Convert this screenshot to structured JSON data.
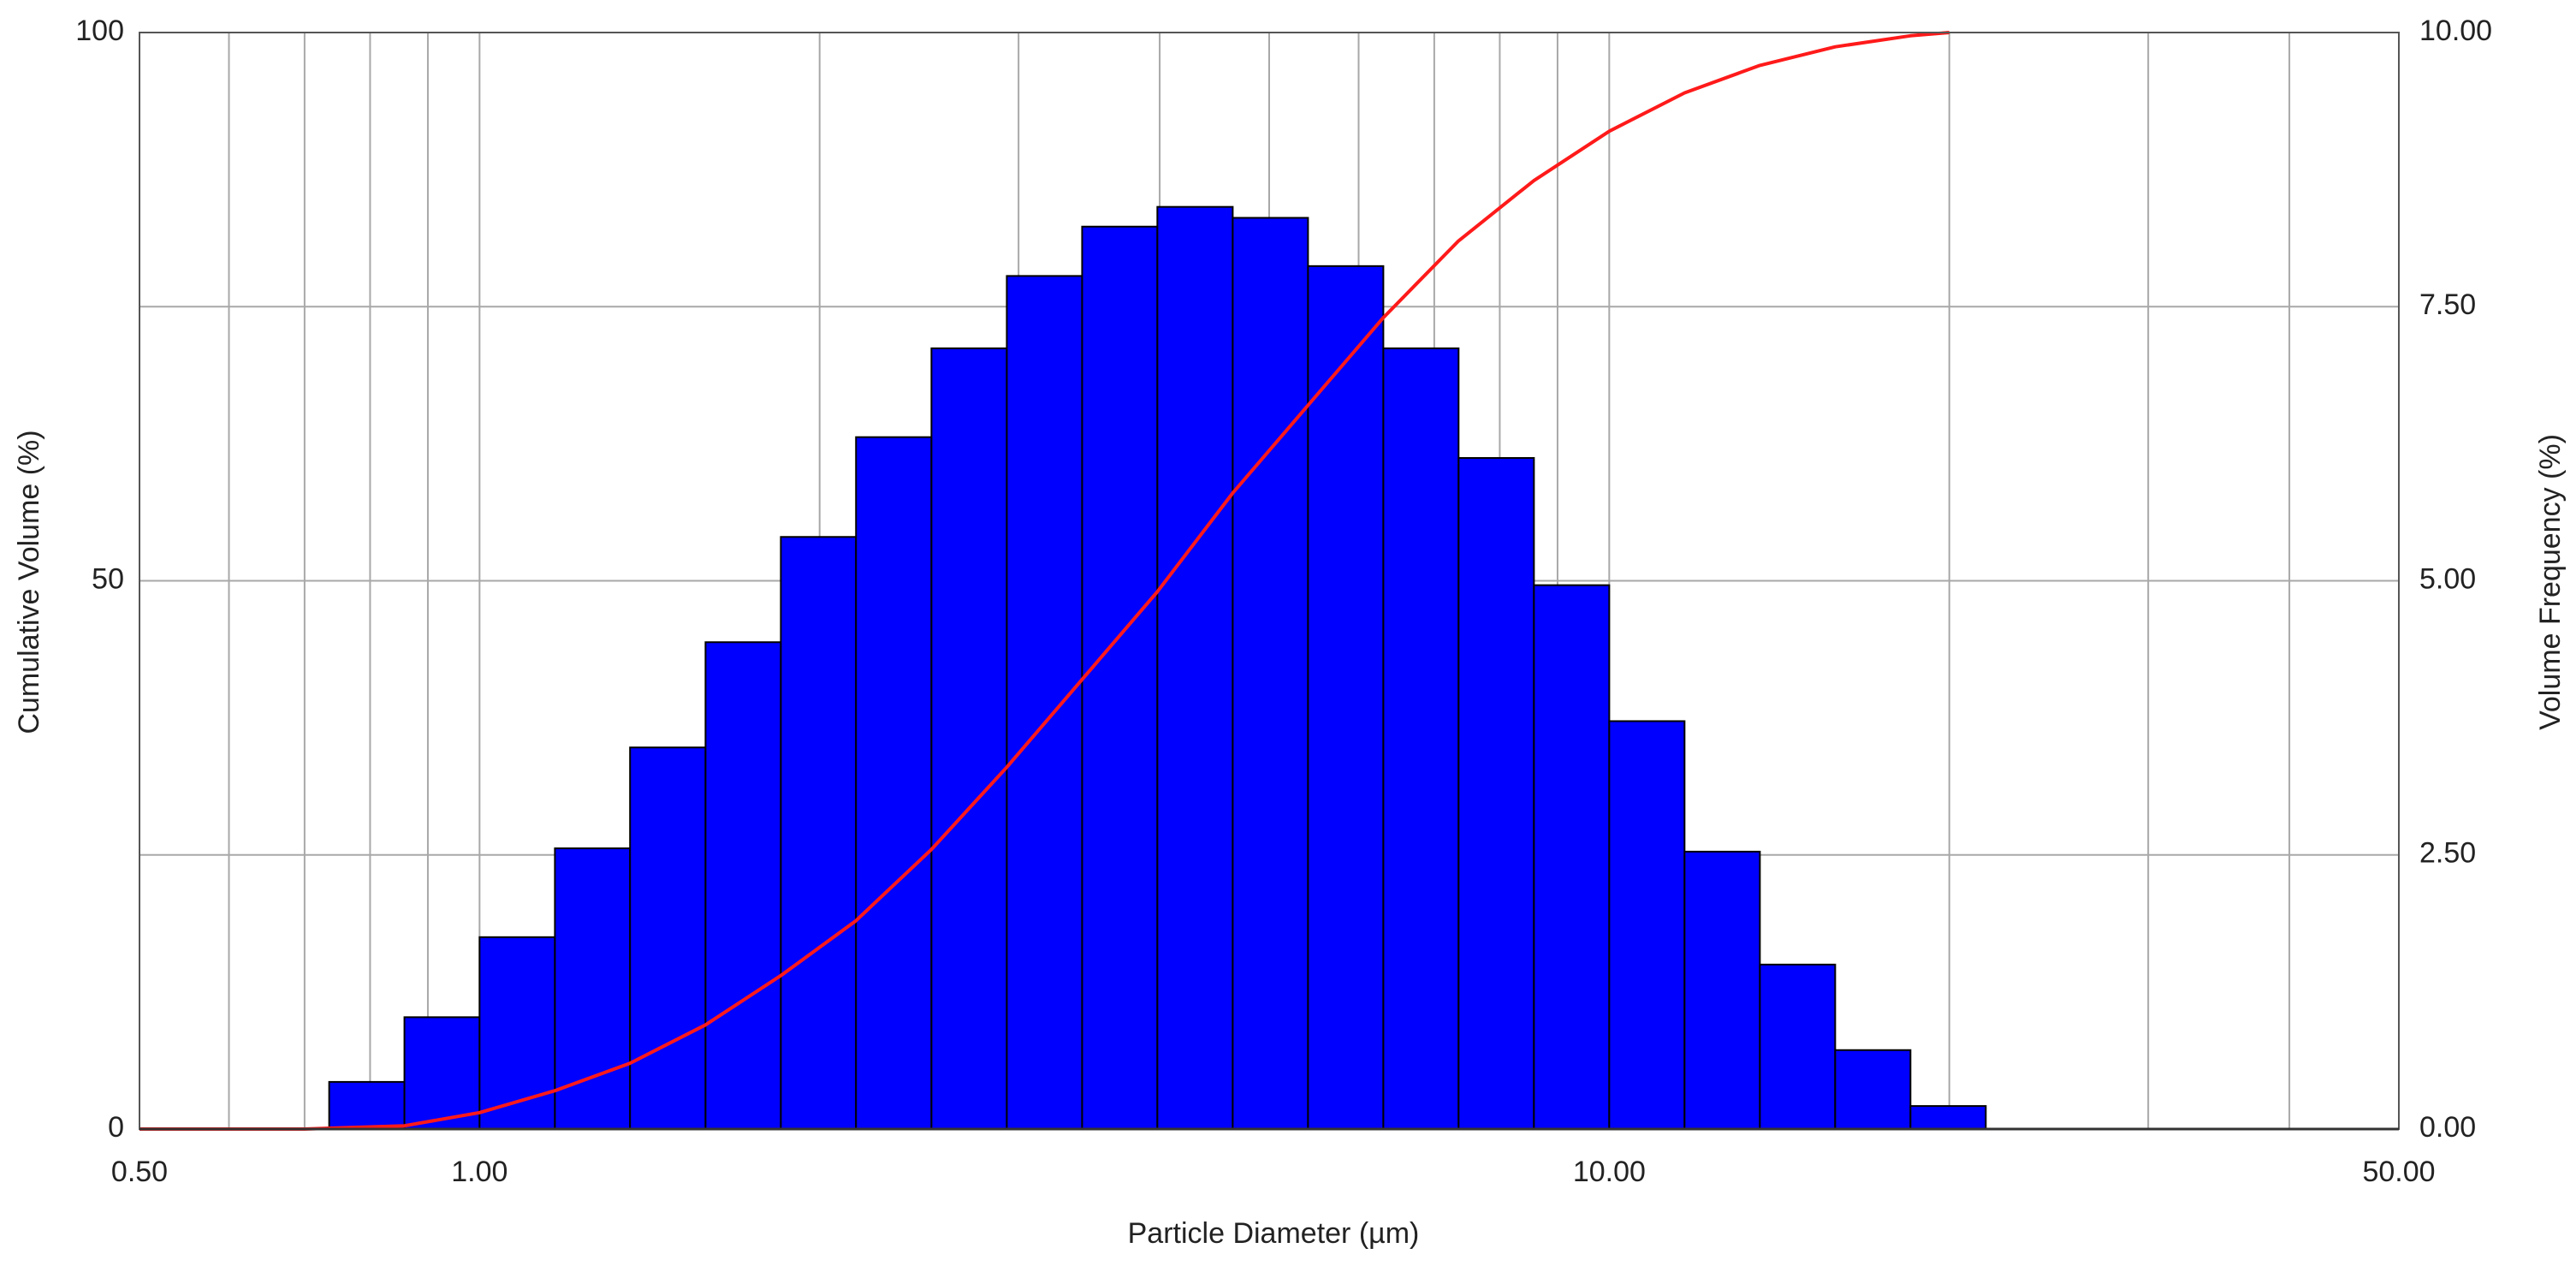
{
  "chart_data": {
    "type": "histogram",
    "x_label": "Particle Diameter (µm)",
    "y_label": "Cumulative Volume (%)",
    "y2_label": "Volume Frequency (%)",
    "x_scale": "log",
    "xlim": [
      0.5,
      50
    ],
    "xticks": [
      {
        "value": 0.5,
        "label": "0.50"
      },
      {
        "value": 1,
        "label": "1.00"
      },
      {
        "value": 10,
        "label": "10.00"
      },
      {
        "value": 50,
        "label": "50.00"
      }
    ],
    "x_minor_grid": [
      0.6,
      0.7,
      0.8,
      0.9,
      2,
      3,
      4,
      5,
      6,
      7,
      8,
      9,
      20,
      30,
      40
    ],
    "ylim": [
      0,
      100
    ],
    "yticks": [
      0,
      50,
      100
    ],
    "y2lim": [
      0,
      10
    ],
    "y2ticks": [
      {
        "value": 0,
        "label": "0.00"
      },
      {
        "value": 2.5,
        "label": "2.50"
      },
      {
        "value": 5,
        "label": "5.00"
      },
      {
        "value": 7.5,
        "label": "7.50"
      },
      {
        "value": 10,
        "label": "10.00"
      }
    ],
    "grid": true,
    "bins": [
      0.736,
      0.858,
      1.0,
      1.166,
      1.359,
      1.585,
      1.848,
      2.154,
      2.512,
      2.929,
      3.415,
      3.981,
      4.642,
      5.412,
      6.31,
      7.356,
      8.577,
      10.0,
      11.659,
      13.594,
      15.849,
      18.478,
      21.544
    ],
    "values": [
      0.43,
      1.02,
      1.75,
      2.56,
      3.48,
      4.44,
      5.4,
      6.31,
      7.12,
      7.78,
      8.23,
      8.41,
      8.31,
      7.87,
      7.12,
      6.12,
      4.96,
      3.72,
      2.53,
      1.5,
      0.72,
      0.21
    ],
    "axis": "y2",
    "color": "#0000ff",
    "line": {
      "x": [
        0.5,
        0.7,
        0.858,
        1.0,
        1.166,
        1.359,
        1.585,
        1.848,
        2.154,
        2.512,
        2.929,
        3.415,
        3.981,
        4.642,
        5.412,
        6.31,
        7.356,
        8.577,
        10,
        11.659,
        13.594,
        15.849,
        18.478,
        20
      ],
      "values": [
        0,
        0,
        0.3,
        1.5,
        3.5,
        6,
        9.5,
        14,
        19,
        25.5,
        33,
        41,
        49,
        58,
        66,
        74,
        81,
        86.5,
        91,
        94.5,
        97,
        98.7,
        99.7,
        100
      ],
      "color": "#ff1a1a"
    }
  }
}
